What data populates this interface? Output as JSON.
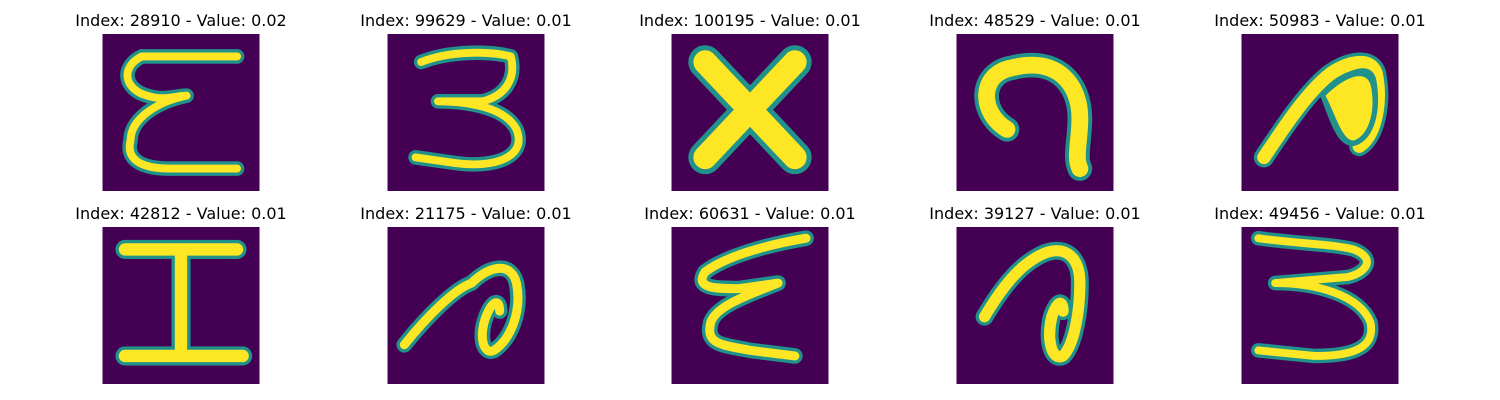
{
  "colors": {
    "background": "#440154",
    "glow": "#21918c",
    "mid": "#5ec962",
    "core": "#fde725"
  },
  "panels": [
    {
      "title": "Index: 28910 - Value: 0.02",
      "glyph": "letter-e-script-icon"
    },
    {
      "title": "Index: 99629 - Value: 0.01",
      "glyph": "digit-3-icon"
    },
    {
      "title": "Index: 100195 - Value: 0.01",
      "glyph": "letter-x-icon"
    },
    {
      "title": "Index: 48529 - Value: 0.01",
      "glyph": "hook-glyph-icon"
    },
    {
      "title": "Index: 50983 - Value: 0.01",
      "glyph": "thick-loop-glyph-icon"
    },
    {
      "title": "Index: 42812 - Value: 0.01",
      "glyph": "letter-i-icon"
    },
    {
      "title": "Index: 21175 - Value: 0.01",
      "glyph": "slanted-loop-glyph-icon"
    },
    {
      "title": "Index: 60631 - Value: 0.01",
      "glyph": "letter-e-zigzag-icon"
    },
    {
      "title": "Index: 39127 - Value: 0.01",
      "glyph": "loop-glyph-icon"
    },
    {
      "title": "Index: 49456 - Value: 0.01",
      "glyph": "digit-3-flat-icon"
    }
  ]
}
